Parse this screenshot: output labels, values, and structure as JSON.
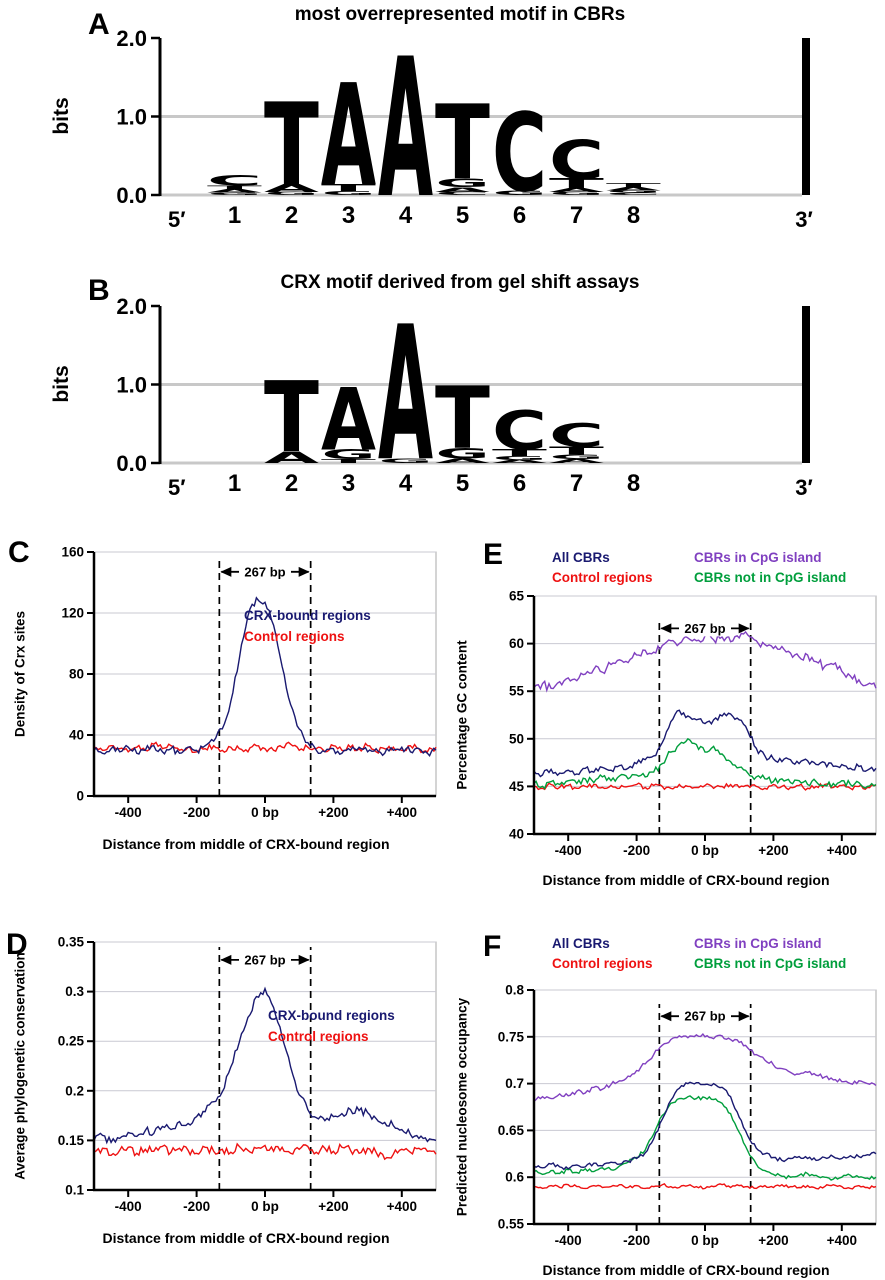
{
  "panels": {
    "a": "A",
    "b": "B",
    "c": "C",
    "d": "D",
    "e": "E",
    "f": "F"
  },
  "logo_colors": {
    "A": "#00C000",
    "C": "#0000E0",
    "G": "#EBC100",
    "T": "#D60000"
  },
  "chart_data": [
    {
      "id": "A",
      "type": "sequence_logo",
      "title": "most overrepresented motif in CBRs",
      "ylabel": "bits",
      "ylim": [
        0,
        2.0
      ],
      "yticks": [
        0,
        1,
        2
      ],
      "ytick_labels": [
        "0.0",
        "1.0",
        "2.0"
      ],
      "xticklabels": [
        "1",
        "2",
        "3",
        "4",
        "5",
        "6",
        "7",
        "8"
      ],
      "five_prime": "5′",
      "three_prime": "3′",
      "stacks": [
        [
          [
            "C",
            0.13
          ],
          [
            "T",
            0.05
          ],
          [
            "A",
            0.04
          ],
          [
            "G",
            0.03
          ]
        ],
        [
          [
            "T",
            1.05
          ],
          [
            "A",
            0.1
          ],
          [
            "G",
            0.04
          ]
        ],
        [
          [
            "A",
            1.3
          ],
          [
            "T",
            0.09
          ],
          [
            "G",
            0.05
          ]
        ],
        [
          [
            "A",
            1.78
          ]
        ],
        [
          [
            "T",
            0.95
          ],
          [
            "G",
            0.11
          ],
          [
            "A",
            0.06
          ],
          [
            "C",
            0.04
          ]
        ],
        [
          [
            "C",
            1.0
          ],
          [
            "G",
            0.06
          ]
        ],
        [
          [
            "C",
            0.5
          ],
          [
            "T",
            0.12
          ],
          [
            "A",
            0.05
          ],
          [
            "G",
            0.04
          ]
        ],
        [
          [
            "T",
            0.05
          ],
          [
            "A",
            0.04
          ],
          [
            "G",
            0.03
          ],
          [
            "C",
            0.03
          ]
        ]
      ]
    },
    {
      "id": "B",
      "type": "sequence_logo",
      "title": "CRX motif derived from gel shift assays",
      "ylabel": "bits",
      "ylim": [
        0,
        2.0
      ],
      "yticks": [
        0,
        1,
        2
      ],
      "ytick_labels": [
        "0.0",
        "1.0",
        "2.0"
      ],
      "xticklabels": [
        "1",
        "2",
        "3",
        "4",
        "5",
        "6",
        "7",
        "8"
      ],
      "five_prime": "5′",
      "three_prime": "3′",
      "stacks": [
        [],
        [
          [
            "T",
            0.9
          ],
          [
            "A",
            0.15
          ]
        ],
        [
          [
            "A",
            0.8
          ],
          [
            "G",
            0.12
          ],
          [
            "T",
            0.05
          ]
        ],
        [
          [
            "A",
            1.72
          ],
          [
            "G",
            0.06
          ]
        ],
        [
          [
            "T",
            0.8
          ],
          [
            "G",
            0.13
          ],
          [
            "A",
            0.06
          ]
        ],
        [
          [
            "C",
            0.5
          ],
          [
            "T",
            0.09
          ],
          [
            "G",
            0.05
          ],
          [
            "A",
            0.04
          ]
        ],
        [
          [
            "C",
            0.3
          ],
          [
            "T",
            0.1
          ],
          [
            "G",
            0.06
          ],
          [
            "A",
            0.05
          ]
        ],
        []
      ]
    },
    {
      "id": "C",
      "type": "line",
      "xlabel": "Distance from middle of CRX-bound region",
      "ylabel": "Density of Crx sites",
      "xlim": [
        -500,
        500
      ],
      "ylim": [
        0,
        160
      ],
      "yticks": [
        0,
        40,
        80,
        120,
        160
      ],
      "ytick_labels": [
        "0",
        "40",
        "80",
        "120",
        "160"
      ],
      "xticks": [
        -400,
        -200,
        0,
        200,
        400
      ],
      "xtick_labels": [
        "-400",
        "-200",
        "0 bp",
        "+200",
        "+400"
      ],
      "window_x": [
        -133.5,
        133.5
      ],
      "window_top": 155,
      "window_label": "267 bp",
      "annotation_y": 147,
      "legend": [
        {
          "label": "CRX-bound regions",
          "color": "#191970"
        },
        {
          "label": "Control regions",
          "color": "#EE1111"
        }
      ],
      "x_start": -500,
      "x_step": 25,
      "series": [
        {
          "name": "Control regions",
          "color": "#EE1111",
          "noise": 2.0,
          "values": [
            32,
            30,
            33,
            31,
            29,
            32,
            30,
            34,
            31,
            33,
            30,
            32,
            29,
            31,
            33,
            30,
            32,
            31,
            29,
            33,
            31,
            30,
            32,
            34,
            30,
            32,
            31,
            29,
            33,
            30,
            32,
            31,
            33,
            29,
            31,
            32,
            30,
            33,
            31,
            29,
            32
          ]
        },
        {
          "name": "CRX-bound regions",
          "color": "#191970",
          "noise": 2.5,
          "values": [
            30,
            28,
            31,
            29,
            32,
            28,
            30,
            33,
            29,
            31,
            28,
            32,
            30,
            33,
            36,
            44,
            62,
            90,
            118,
            130,
            127,
            112,
            85,
            60,
            44,
            35,
            30,
            29,
            31,
            28,
            30,
            32,
            29,
            31,
            28,
            30,
            32,
            29,
            31,
            28,
            30
          ]
        }
      ]
    },
    {
      "id": "D",
      "type": "line",
      "xlabel": "Distance from middle of CRX-bound region",
      "ylabel": "Average phylogenetic conservation",
      "xlim": [
        -500,
        500
      ],
      "ylim": [
        0.1,
        0.35
      ],
      "yticks": [
        0.1,
        0.15,
        0.2,
        0.25,
        0.3,
        0.35
      ],
      "ytick_labels": [
        "0.1",
        "0.15",
        "0.2",
        "0.25",
        "0.3",
        "0.35"
      ],
      "xticks": [
        -400,
        -200,
        0,
        200,
        400
      ],
      "xtick_labels": [
        "-400",
        "-200",
        "0 bp",
        "+200",
        "+400"
      ],
      "window_x": [
        -133.5,
        133.5
      ],
      "window_top": 0.345,
      "window_label": "267 bp",
      "annotation_y": 0.332,
      "legend": [
        {
          "label": "CRX-bound regions",
          "color": "#191970"
        },
        {
          "label": "Control regions",
          "color": "#EE1111"
        }
      ],
      "x_start": -500,
      "x_step": 25,
      "series": [
        {
          "name": "Control regions",
          "color": "#EE1111",
          "noise": 0.004,
          "values": [
            0.138,
            0.142,
            0.135,
            0.14,
            0.143,
            0.137,
            0.141,
            0.139,
            0.144,
            0.138,
            0.142,
            0.14,
            0.137,
            0.143,
            0.139,
            0.141,
            0.138,
            0.144,
            0.14,
            0.142,
            0.145,
            0.139,
            0.143,
            0.137,
            0.141,
            0.144,
            0.138,
            0.142,
            0.139,
            0.143,
            0.14,
            0.137,
            0.142,
            0.138,
            0.131,
            0.136,
            0.141,
            0.138,
            0.142,
            0.139,
            0.136
          ]
        },
        {
          "name": "CRX-bound regions",
          "color": "#191970",
          "noise": 0.004,
          "values": [
            0.15,
            0.155,
            0.148,
            0.152,
            0.158,
            0.154,
            0.16,
            0.157,
            0.164,
            0.161,
            0.169,
            0.167,
            0.174,
            0.179,
            0.189,
            0.199,
            0.224,
            0.249,
            0.274,
            0.295,
            0.303,
            0.284,
            0.254,
            0.224,
            0.196,
            0.181,
            0.173,
            0.17,
            0.174,
            0.177,
            0.181,
            0.18,
            0.178,
            0.172,
            0.168,
            0.165,
            0.161,
            0.156,
            0.152,
            0.149,
            0.15
          ]
        }
      ]
    },
    {
      "id": "E",
      "type": "line",
      "xlabel": "Distance from middle of CRX-bound region",
      "ylabel": "Percentage GC content",
      "xlim": [
        -500,
        500
      ],
      "ylim": [
        40,
        65
      ],
      "yticks": [
        40,
        45,
        50,
        55,
        60,
        65
      ],
      "ytick_labels": [
        "40",
        "45",
        "50",
        "55",
        "60",
        "65"
      ],
      "xticks": [
        -400,
        -200,
        0,
        200,
        400
      ],
      "xtick_labels": [
        "-400",
        "-200",
        "0 bp",
        "+200",
        "+400"
      ],
      "window_x": [
        -133.5,
        133.5
      ],
      "window_top": 62.5,
      "window_label": "267 bp",
      "annotation_y": 61.6,
      "legend": [
        {
          "label": "All CBRs",
          "color": "#191970"
        },
        {
          "label": "CBRs in CpG island",
          "color": "#8040C0"
        },
        {
          "label": "Control regions",
          "color": "#EE1111"
        },
        {
          "label": "CBRs not in CpG island",
          "color": "#009E3C"
        }
      ],
      "x_start": -500,
      "x_step": 25,
      "series": [
        {
          "name": "Control regions",
          "color": "#EE1111",
          "noise": 0.25,
          "values": [
            45.0,
            44.8,
            45.2,
            44.9,
            45.1,
            44.8,
            45.0,
            45.2,
            44.9,
            45.1,
            44.8,
            45.0,
            45.2,
            44.9,
            45.1,
            45.0,
            44.8,
            45.2,
            45.0,
            44.9,
            45.1,
            44.8,
            45.0,
            45.2,
            44.9,
            45.1,
            45.0,
            44.8,
            45.2,
            45.0,
            44.9,
            45.1,
            44.8,
            45.0,
            45.2,
            44.9,
            45.1,
            44.8,
            45.0,
            44.9,
            45.1
          ]
        },
        {
          "name": "CBRs not in CpG island",
          "color": "#009E3C",
          "noise": 0.35,
          "values": [
            45.3,
            45.0,
            45.5,
            45.2,
            45.6,
            45.3,
            45.8,
            45.4,
            46.0,
            45.6,
            46.1,
            45.8,
            46.2,
            46.0,
            46.5,
            47.4,
            48.6,
            49.4,
            50.0,
            49.4,
            48.6,
            49.2,
            48.4,
            47.6,
            47.0,
            46.4,
            46.0,
            45.8,
            45.5,
            45.8,
            45.4,
            45.6,
            45.2,
            45.5,
            45.1,
            45.3,
            45.6,
            45.2,
            45.4,
            45.0,
            45.2
          ]
        },
        {
          "name": "All CBRs",
          "color": "#191970",
          "noise": 0.35,
          "values": [
            46.6,
            46.2,
            46.8,
            46.4,
            46.7,
            46.3,
            46.9,
            46.5,
            47.0,
            46.7,
            47.2,
            46.9,
            47.4,
            47.8,
            48.2,
            49.6,
            51.8,
            53.0,
            52.4,
            52.0,
            51.6,
            52.0,
            52.4,
            52.6,
            52.0,
            50.8,
            49.0,
            48.2,
            47.9,
            47.6,
            47.8,
            47.4,
            47.7,
            47.3,
            47.5,
            47.1,
            47.3,
            46.9,
            47.1,
            46.7,
            46.9
          ]
        },
        {
          "name": "CBRs in CpG island",
          "color": "#8040C0",
          "noise": 0.45,
          "values": [
            55.4,
            55.8,
            55.3,
            56.0,
            56.4,
            56.1,
            56.8,
            57.3,
            57.0,
            57.8,
            58.3,
            58.0,
            58.8,
            59.3,
            59.1,
            59.8,
            60.3,
            60.0,
            60.6,
            60.3,
            60.8,
            60.4,
            60.7,
            60.2,
            60.6,
            60.9,
            60.3,
            59.9,
            59.5,
            59.7,
            59.0,
            58.6,
            58.8,
            58.1,
            57.6,
            57.8,
            57.1,
            56.6,
            56.2,
            55.7,
            55.3
          ]
        }
      ]
    },
    {
      "id": "F",
      "type": "line",
      "xlabel": "Distance from middle of CRX-bound region",
      "ylabel": "Predicted nucleosome occupancy",
      "xlim": [
        -500,
        500
      ],
      "ylim": [
        0.55,
        0.8
      ],
      "yticks": [
        0.55,
        0.6,
        0.65,
        0.7,
        0.75,
        0.8
      ],
      "ytick_labels": [
        "0.55",
        "0.6",
        "0.65",
        "0.7",
        "0.75",
        "0.8"
      ],
      "xticks": [
        -400,
        -200,
        0,
        200,
        400
      ],
      "xtick_labels": [
        "-400",
        "-200",
        "0 bp",
        "+200",
        "+400"
      ],
      "window_x": [
        -133.5,
        133.5
      ],
      "window_top": 0.785,
      "window_label": "267 bp",
      "annotation_y": 0.772,
      "legend": [
        {
          "label": "All CBRs",
          "color": "#191970"
        },
        {
          "label": "CBRs in CpG island",
          "color": "#8040C0"
        },
        {
          "label": "Control regions",
          "color": "#EE1111"
        },
        {
          "label": "CBRs not in CpG island",
          "color": "#009E3C"
        }
      ],
      "x_start": -500,
      "x_step": 25,
      "series": [
        {
          "name": "Control regions",
          "color": "#EE1111",
          "noise": 0.0015,
          "values": [
            0.59,
            0.588,
            0.591,
            0.589,
            0.592,
            0.59,
            0.588,
            0.591,
            0.589,
            0.59,
            0.592,
            0.589,
            0.591,
            0.588,
            0.59,
            0.592,
            0.59,
            0.589,
            0.591,
            0.59,
            0.588,
            0.59,
            0.592,
            0.589,
            0.591,
            0.59,
            0.588,
            0.591,
            0.589,
            0.592,
            0.59,
            0.589,
            0.591,
            0.588,
            0.59,
            0.592,
            0.59,
            0.588,
            0.591,
            0.589,
            0.59
          ]
        },
        {
          "name": "CBRs not in CpG island",
          "color": "#009E3C",
          "noise": 0.002,
          "values": [
            0.606,
            0.603,
            0.607,
            0.604,
            0.608,
            0.605,
            0.609,
            0.606,
            0.61,
            0.608,
            0.612,
            0.616,
            0.621,
            0.629,
            0.646,
            0.666,
            0.679,
            0.684,
            0.686,
            0.684,
            0.685,
            0.683,
            0.679,
            0.668,
            0.648,
            0.628,
            0.614,
            0.607,
            0.603,
            0.601,
            0.6,
            0.602,
            0.604,
            0.602,
            0.6,
            0.598,
            0.6,
            0.602,
            0.6,
            0.599,
            0.6
          ]
        },
        {
          "name": "All CBRs",
          "color": "#191970",
          "noise": 0.002,
          "values": [
            0.612,
            0.61,
            0.614,
            0.611,
            0.609,
            0.613,
            0.611,
            0.615,
            0.612,
            0.616,
            0.614,
            0.617,
            0.62,
            0.626,
            0.641,
            0.662,
            0.682,
            0.695,
            0.7,
            0.701,
            0.699,
            0.7,
            0.696,
            0.686,
            0.664,
            0.644,
            0.631,
            0.625,
            0.621,
            0.618,
            0.62,
            0.622,
            0.62,
            0.618,
            0.621,
            0.622,
            0.62,
            0.623,
            0.622,
            0.624,
            0.625
          ]
        },
        {
          "name": "CBRs in CpG island",
          "color": "#8040C0",
          "noise": 0.0025,
          "values": [
            0.681,
            0.686,
            0.684,
            0.689,
            0.687,
            0.692,
            0.69,
            0.696,
            0.694,
            0.699,
            0.703,
            0.708,
            0.714,
            0.721,
            0.731,
            0.741,
            0.747,
            0.751,
            0.749,
            0.752,
            0.75,
            0.748,
            0.751,
            0.747,
            0.744,
            0.738,
            0.731,
            0.725,
            0.72,
            0.716,
            0.712,
            0.71,
            0.712,
            0.709,
            0.707,
            0.704,
            0.702,
            0.7,
            0.703,
            0.7,
            0.698
          ]
        }
      ]
    }
  ]
}
